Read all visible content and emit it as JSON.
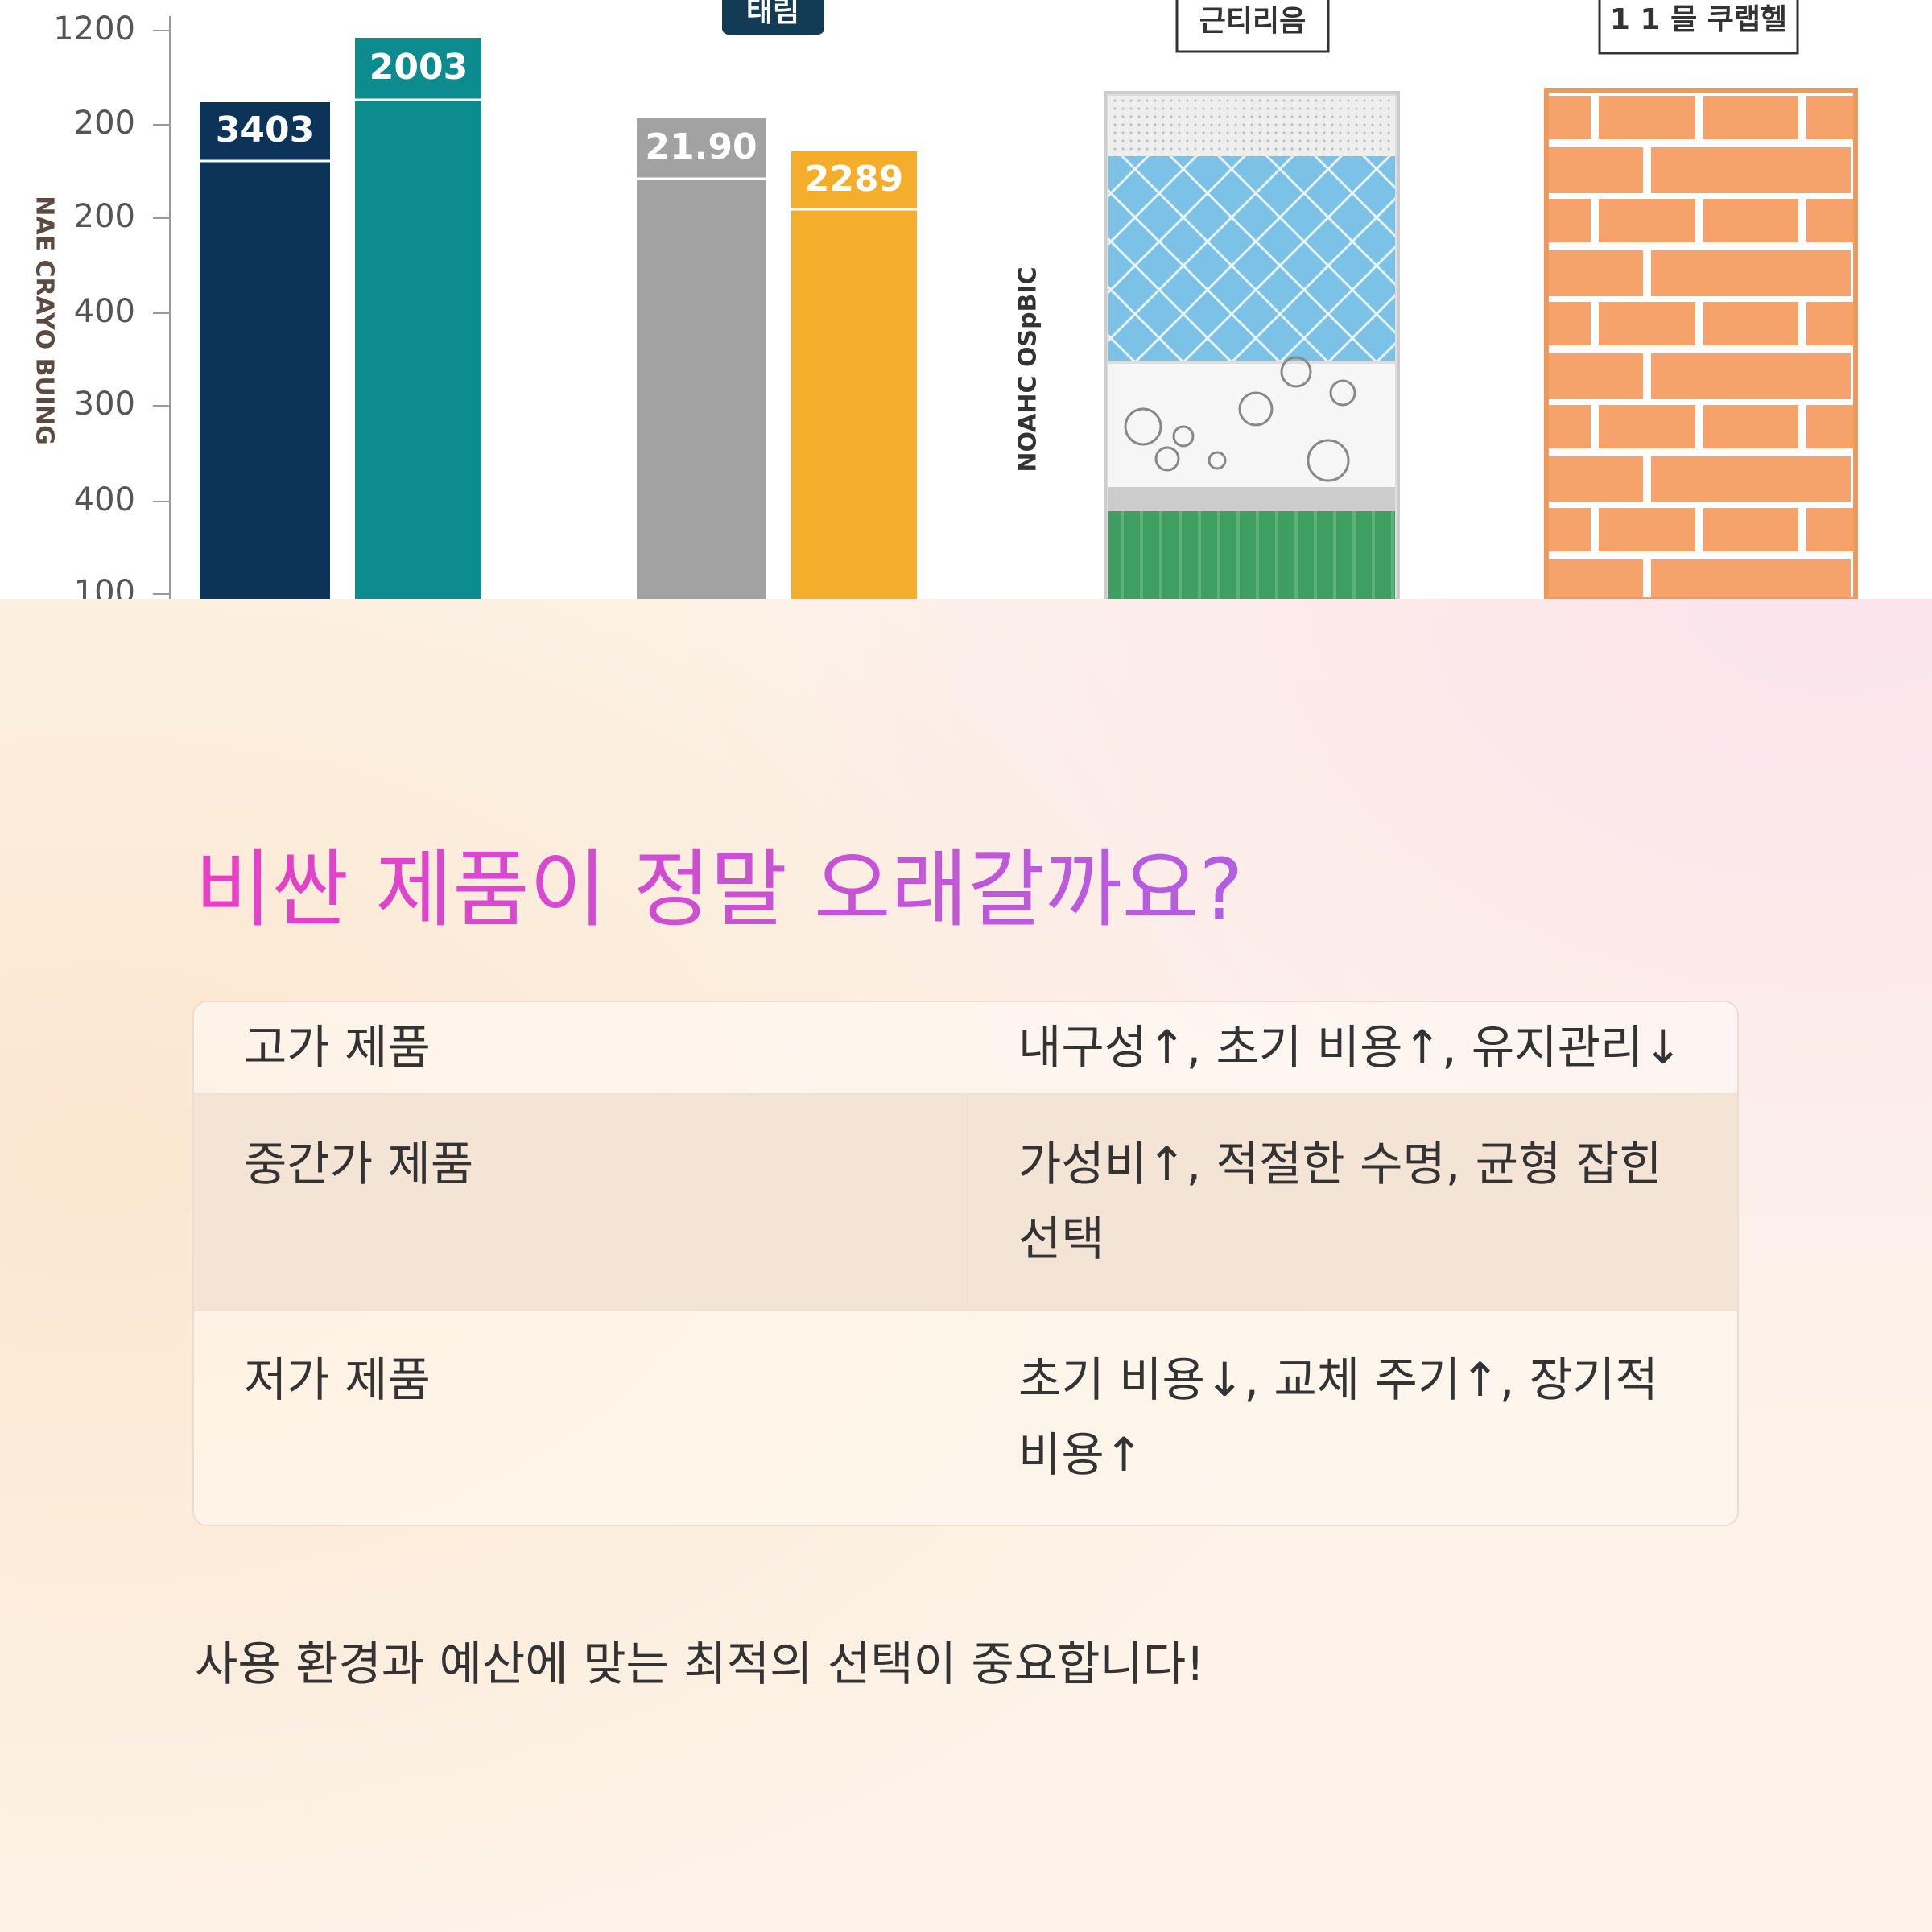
{
  "image": {
    "y_axis_title": "NAE CRAYO BUING",
    "tick_labels": [
      "1200",
      "200",
      "200",
      "400",
      "300",
      "400",
      "100"
    ],
    "bar_labels": [
      "3403",
      "2003",
      "21.90",
      "2289"
    ],
    "panel_labels": [
      "태림",
      "근티리음",
      "1 1 믈 쿠랩헬"
    ],
    "side_label": "NOAHC OSpBIC"
  },
  "heading": "비싼 제품이 정말 오래갈까요?",
  "table": {
    "rows": [
      [
        "고가 제품",
        "내구성↑, 초기 비용↑, 유지관리↓"
      ],
      [
        "중간가 제품",
        "가성비↑, 적절한 수명, 균형 잡힌 선택"
      ],
      [
        "저가 제품",
        "초기 비용↓, 교체 주기↑, 장기적 비용↑"
      ]
    ]
  },
  "footer": "사용 환경과 예산에 맞는 최적의 선택이 중요합니다!"
}
